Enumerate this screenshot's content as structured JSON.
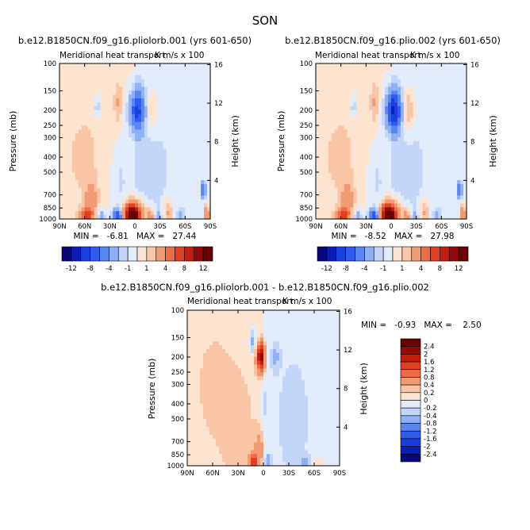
{
  "page_title": "SON",
  "chart_data": [
    {
      "type": "heatmap",
      "id": "panel-a",
      "title": "b.e12.B1850CN.f09_g16.pliolorb.001 (yrs 601-650)",
      "subtitle_left": "Meridional heat transport",
      "subtitle_right": "K m/s x 100",
      "xlabel": "",
      "ylabel": "Pressure (mb)",
      "ylabel_right": "Height (km)",
      "x_ticks": [
        "90N",
        "60N",
        "30N",
        "0",
        "30S",
        "60S",
        "90S"
      ],
      "xlim": [
        90,
        -90
      ],
      "y_ticks": [
        "100",
        "150",
        "200",
        "250",
        "300",
        "400",
        "500",
        "700",
        "850",
        "1000"
      ],
      "ylim": [
        1000,
        100
      ],
      "y_scale": "log",
      "height_ticks": [
        "16",
        "12",
        "8",
        "4"
      ],
      "stats_text": "MIN =   -6.81   MAX =   27.44",
      "min": -6.81,
      "max": 27.44,
      "features": [
        {
          "lat": 58,
          "p": 950,
          "value": 6,
          "wx": 8,
          "wy": 0.1
        },
        {
          "lat": 52,
          "p": 750,
          "value": 3,
          "wx": 7,
          "wy": 0.25
        },
        {
          "lat": 40,
          "p": 950,
          "value": -3,
          "wx": 5,
          "wy": 0.1
        },
        {
          "lat": 20,
          "p": 960,
          "value": -8,
          "wx": 6,
          "wy": 0.12
        },
        {
          "lat": 18,
          "p": 600,
          "value": -1,
          "wx": 9,
          "wy": 0.5
        },
        {
          "lat": 3,
          "p": 960,
          "value": 12,
          "wx": 8,
          "wy": 0.12
        },
        {
          "lat": 2,
          "p": 900,
          "value": 7,
          "wx": 12,
          "wy": 0.18
        },
        {
          "lat": -3,
          "p": 200,
          "value": -8,
          "wx": 9,
          "wy": 0.3
        },
        {
          "lat": 20,
          "p": 180,
          "value": 2,
          "wx": 5,
          "wy": 0.35
        },
        {
          "lat": 45,
          "p": 190,
          "value": -2,
          "wx": 4,
          "wy": 0.18
        },
        {
          "lat": -20,
          "p": 200,
          "value": 2,
          "wx": 8,
          "wy": 0.3
        },
        {
          "lat": -18,
          "p": 960,
          "value": 4,
          "wx": 5,
          "wy": 0.12
        },
        {
          "lat": -28,
          "p": 970,
          "value": -2,
          "wx": 4,
          "wy": 0.08
        },
        {
          "lat": -40,
          "p": 900,
          "value": 3,
          "wx": 6,
          "wy": 0.2
        },
        {
          "lat": -55,
          "p": 960,
          "value": -2,
          "wx": 5,
          "wy": 0.1
        },
        {
          "lat": -82,
          "p": 650,
          "value": -6,
          "wx": 3,
          "wy": 0.12
        },
        {
          "lat": -86,
          "p": 950,
          "value": 8,
          "wx": 2,
          "wy": 0.15
        },
        {
          "lat": -15,
          "p": 500,
          "value": -1,
          "wx": 40,
          "wy": 1.2
        },
        {
          "lat": 60,
          "p": 400,
          "value": 1,
          "wx": 25,
          "wy": 0.8
        }
      ],
      "contour_levels": [
        -12,
        -10,
        -8,
        -6,
        -4,
        -2,
        -1,
        0,
        1,
        2,
        4,
        6,
        8,
        10,
        12
      ],
      "colorbar_labels": [
        "-12",
        "-8",
        "-4",
        "-1",
        "1",
        "4",
        "8",
        "12"
      ]
    },
    {
      "type": "heatmap",
      "id": "panel-b",
      "title": "b.e12.B1850CN.f09_g16.plio.002 (yrs 601-650)",
      "subtitle_left": "Meridional heat transport",
      "subtitle_right": "K m/s x 100",
      "xlabel": "",
      "ylabel": "Pressure (mb)",
      "ylabel_right": "Height (km)",
      "x_ticks": [
        "90N",
        "60N",
        "30N",
        "0",
        "30S",
        "60S",
        "90S"
      ],
      "xlim": [
        90,
        -90
      ],
      "y_ticks": [
        "100",
        "150",
        "200",
        "250",
        "300",
        "400",
        "500",
        "700",
        "850",
        "1000"
      ],
      "ylim": [
        1000,
        100
      ],
      "y_scale": "log",
      "height_ticks": [
        "16",
        "12",
        "8",
        "4"
      ],
      "stats_text": "MIN =   -8.52   MAX =   27.98",
      "min": -8.52,
      "max": 27.98,
      "features": [
        {
          "lat": 58,
          "p": 950,
          "value": 6,
          "wx": 8,
          "wy": 0.1
        },
        {
          "lat": 52,
          "p": 750,
          "value": 3,
          "wx": 7,
          "wy": 0.25
        },
        {
          "lat": 40,
          "p": 950,
          "value": -3,
          "wx": 5,
          "wy": 0.1
        },
        {
          "lat": 20,
          "p": 960,
          "value": -8,
          "wx": 6,
          "wy": 0.12
        },
        {
          "lat": 18,
          "p": 600,
          "value": -1,
          "wx": 9,
          "wy": 0.5
        },
        {
          "lat": 3,
          "p": 960,
          "value": 12,
          "wx": 8,
          "wy": 0.12
        },
        {
          "lat": 2,
          "p": 900,
          "value": 7,
          "wx": 12,
          "wy": 0.18
        },
        {
          "lat": -3,
          "p": 200,
          "value": -10,
          "wx": 9,
          "wy": 0.3
        },
        {
          "lat": 20,
          "p": 180,
          "value": 2,
          "wx": 5,
          "wy": 0.35
        },
        {
          "lat": 45,
          "p": 190,
          "value": -2,
          "wx": 4,
          "wy": 0.18
        },
        {
          "lat": -20,
          "p": 200,
          "value": 3,
          "wx": 8,
          "wy": 0.3
        },
        {
          "lat": -18,
          "p": 960,
          "value": 4,
          "wx": 5,
          "wy": 0.12
        },
        {
          "lat": -28,
          "p": 970,
          "value": -2,
          "wx": 4,
          "wy": 0.08
        },
        {
          "lat": -40,
          "p": 900,
          "value": 3,
          "wx": 6,
          "wy": 0.2
        },
        {
          "lat": -55,
          "p": 960,
          "value": -2,
          "wx": 5,
          "wy": 0.1
        },
        {
          "lat": -82,
          "p": 650,
          "value": -6,
          "wx": 3,
          "wy": 0.12
        },
        {
          "lat": -86,
          "p": 950,
          "value": 8,
          "wx": 2,
          "wy": 0.15
        },
        {
          "lat": -15,
          "p": 500,
          "value": -1,
          "wx": 40,
          "wy": 1.2
        },
        {
          "lat": 60,
          "p": 400,
          "value": 1,
          "wx": 25,
          "wy": 0.8
        }
      ],
      "contour_levels": [
        -12,
        -10,
        -8,
        -6,
        -4,
        -2,
        -1,
        0,
        1,
        2,
        4,
        6,
        8,
        10,
        12
      ],
      "colorbar_labels": [
        "-12",
        "-8",
        "-4",
        "-1",
        "1",
        "4",
        "8",
        "12"
      ]
    },
    {
      "type": "heatmap",
      "id": "panel-diff",
      "title": "b.e12.B1850CN.f09_g16.pliolorb.001 - b.e12.B1850CN.f09_g16.plio.002",
      "subtitle_left": "Meridional heat transport",
      "subtitle_right": "K m/s x 100",
      "xlabel": "",
      "ylabel": "Pressure (mb)",
      "ylabel_right": "Height (km)",
      "x_ticks": [
        "90N",
        "60N",
        "30N",
        "0",
        "30S",
        "60S",
        "90S"
      ],
      "xlim": [
        90,
        -90
      ],
      "y_ticks": [
        "100",
        "150",
        "200",
        "250",
        "300",
        "400",
        "500",
        "700",
        "850",
        "1000"
      ],
      "ylim": [
        1000,
        100
      ],
      "y_scale": "log",
      "height_ticks": [
        "16",
        "12",
        "8",
        "4"
      ],
      "stats_text": "MIN =   -0.93   MAX =    2.50",
      "min": -0.93,
      "max": 2.5,
      "features": [
        {
          "lat": 3,
          "p": 200,
          "value": 2.2,
          "wx": 5,
          "wy": 0.2
        },
        {
          "lat": 12,
          "p": 160,
          "value": -0.6,
          "wx": 4,
          "wy": 0.2
        },
        {
          "lat": -14,
          "p": 200,
          "value": -0.4,
          "wx": 5,
          "wy": 0.2
        },
        {
          "lat": 12,
          "p": 930,
          "value": 1.4,
          "wx": 5,
          "wy": 0.12
        },
        {
          "lat": -5,
          "p": 930,
          "value": -0.6,
          "wx": 5,
          "wy": 0.1
        },
        {
          "lat": 5,
          "p": 800,
          "value": 0.5,
          "wx": 6,
          "wy": 0.3
        },
        {
          "lat": 0,
          "p": 400,
          "value": -0.3,
          "wx": 3,
          "wy": 0.3
        },
        {
          "lat": 30,
          "p": 600,
          "value": 0.2,
          "wx": 25,
          "wy": 1.2
        },
        {
          "lat": -35,
          "p": 500,
          "value": -0.2,
          "wx": 25,
          "wy": 1.2
        },
        {
          "lat": -50,
          "p": 950,
          "value": -0.4,
          "wx": 5,
          "wy": 0.1
        },
        {
          "lat": -65,
          "p": 970,
          "value": 0.3,
          "wx": 6,
          "wy": 0.08
        },
        {
          "lat": 60,
          "p": 300,
          "value": 0.2,
          "wx": 20,
          "wy": 0.8
        }
      ],
      "contour_levels": [
        -2.4,
        -2,
        -1.6,
        -1.2,
        -0.8,
        -0.4,
        -0.2,
        0,
        0.2,
        0.4,
        0.8,
        1.2,
        1.6,
        2,
        2.4
      ],
      "colorbar_labels": [
        "2.4",
        "2",
        "1.6",
        "1.2",
        "0.8",
        "0.4",
        "0.2",
        "0",
        "-0.2",
        "-0.4",
        "-0.8",
        "-1.2",
        "-1.6",
        "-2",
        "-2.4"
      ]
    }
  ],
  "colors": {
    "palette": [
      "#08087a",
      "#0a1fb8",
      "#1a3fe0",
      "#2f5cef",
      "#5a86f2",
      "#8fb0f5",
      "#c4d6f8",
      "#e1ebf9",
      "#fbe3cf",
      "#f8c6a5",
      "#f29b73",
      "#ec6c45",
      "#e0401f",
      "#c41d0f",
      "#900a0a",
      "#6a0000"
    ],
    "neutral_neg": "#e1ebf9",
    "neutral_pos": "#fbe3cf"
  }
}
